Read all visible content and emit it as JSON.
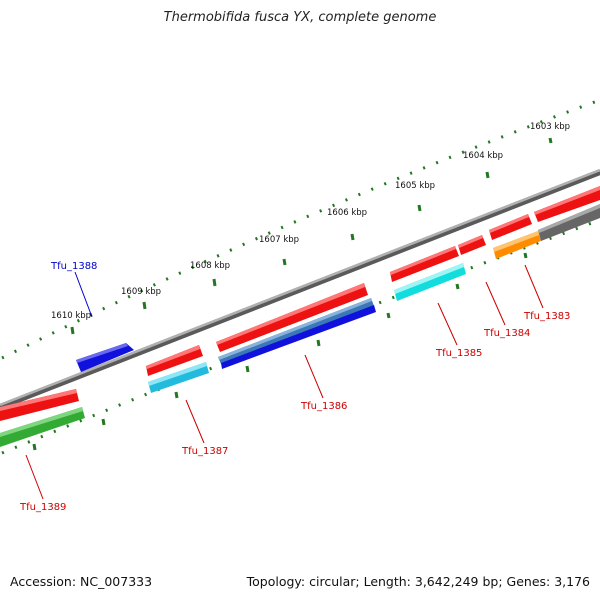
{
  "title": "Thermobifida fusca YX, complete genome",
  "footer": {
    "accession": "Accession: NC_007333",
    "summary": "Topology: circular; Length: 3,642,249 bp; Genes: 3,176"
  },
  "kbp_labels": [
    "1603 kbp",
    "1604 kbp",
    "1605 kbp",
    "1606 kbp",
    "1607 kbp",
    "1608 kbp",
    "1609 kbp",
    "1610 kbp"
  ],
  "genes": [
    {
      "name": "Tfu_1383",
      "label_color": "#cc0000"
    },
    {
      "name": "Tfu_1384",
      "label_color": "#cc0000"
    },
    {
      "name": "Tfu_1385",
      "label_color": "#cc0000"
    },
    {
      "name": "Tfu_1386",
      "label_color": "#cc0000"
    },
    {
      "name": "Tfu_1387",
      "label_color": "#cc0000"
    },
    {
      "name": "Tfu_1388",
      "label_color": "#0000cc"
    },
    {
      "name": "Tfu_1389",
      "label_color": "#cc0000"
    }
  ],
  "colors": {
    "backbone": "#888888",
    "scale_ticks": "#227722",
    "cds": "#ee1111",
    "forward_gene": "#1111dd",
    "light_blue": "#3377bb",
    "cyan": "#22ddee",
    "orange": "#ff8c00",
    "gray": "#666666",
    "green": "#33aa33"
  }
}
